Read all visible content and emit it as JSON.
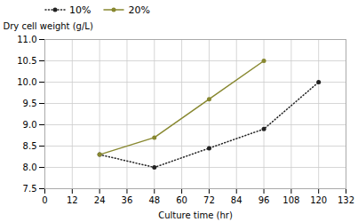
{
  "chart_data": {
    "type": "line",
    "x": [
      24,
      48,
      72,
      96,
      120
    ],
    "series": [
      {
        "name": "10%",
        "color": "#222222",
        "values": [
          8.3,
          8.0,
          8.45,
          8.9,
          10.0
        ],
        "marker": "circle",
        "line_style": "dotted"
      },
      {
        "name": "20%",
        "color": "#888830",
        "values": [
          8.3,
          8.7,
          9.6,
          10.5,
          null
        ],
        "marker": "circle",
        "line_style": "solid"
      }
    ],
    "x_label": "Culture time (hr)",
    "y_label": "Dry cell weight (g/L)",
    "xlim": [
      0,
      132
    ],
    "ylim": [
      7.5,
      11.0
    ],
    "xticks": [
      0,
      12,
      24,
      36,
      48,
      60,
      72,
      84,
      96,
      108,
      120,
      132
    ],
    "yticks": [
      7.5,
      {
        "value": 8,
        "label": "8.0"
      },
      8.5,
      {
        "value": 9,
        "label": "9.0"
      },
      9.5,
      {
        "value": 10,
        "label": "10.0"
      },
      10.5,
      {
        "value": 11,
        "label": "11.0"
      }
    ],
    "grid": true,
    "legend": "upper left"
  }
}
